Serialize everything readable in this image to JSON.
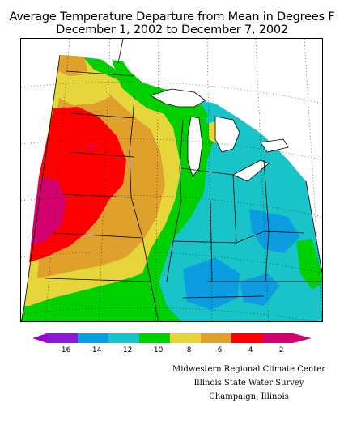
{
  "title": {
    "line1": "Average Temperature Departure from Mean in Degrees F",
    "line2": "December 1, 2002 to December 7, 2002"
  },
  "legend": {
    "ticks": [
      "-16",
      "-14",
      "-12",
      "-10",
      "-8",
      "-6",
      "-4",
      "-2"
    ],
    "colors": [
      "#9a00d6",
      "#8a1ad8",
      "#0b9de0",
      "#19c4c8",
      "#00d000",
      "#e6d63c",
      "#e0a12c",
      "#ff0000",
      "#d4006e"
    ]
  },
  "map_colors": {
    "green": "#00d000",
    "cyan": "#19c4c8",
    "blue": "#0b9de0",
    "yellow": "#e6d63c",
    "orange": "#e0a12c",
    "red": "#ff0000",
    "magenta": "#d4006e"
  },
  "credits": {
    "line1": "Midwestern Regional Climate Center",
    "line2": "Illinois State Water Survey",
    "line3": "Champaign, Illinois"
  }
}
